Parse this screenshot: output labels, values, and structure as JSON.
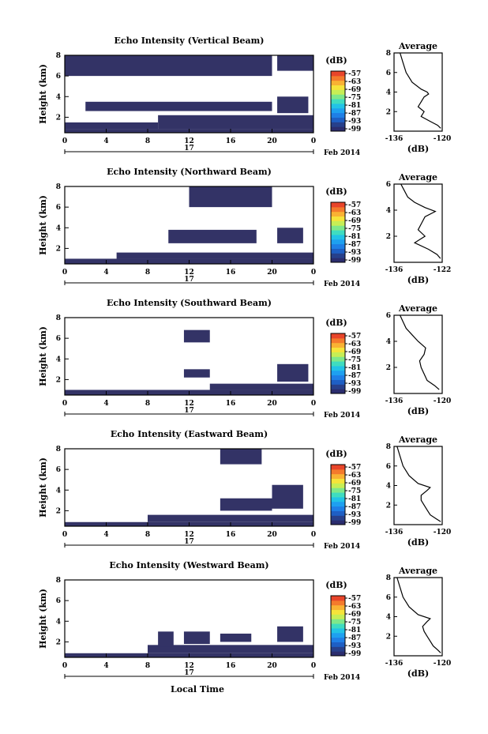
{
  "figure": {
    "xlabel": "Local Time",
    "date_label": "17",
    "month_label": "Feb 2014"
  },
  "colorbar": {
    "unit": "(dB)",
    "ticks": [
      "-57",
      "-63",
      "-69",
      "-75",
      "-81",
      "-87",
      "-93",
      "-99"
    ],
    "colors": [
      "#2b2d6e",
      "#27408b",
      "#1e5fc4",
      "#1f7fe6",
      "#1ea0f0",
      "#22c3e6",
      "#3fdcc0",
      "#7fe88a",
      "#c7ee55",
      "#f6e43a",
      "#f9b233",
      "#f47a2c",
      "#e8452a"
    ]
  },
  "chart_data": [
    {
      "type": "heatmap",
      "title": "Echo Intensity (Vertical Beam)",
      "ylabel": "Height (km)",
      "xlim": [
        0,
        24
      ],
      "ylim": [
        0.5,
        8
      ],
      "xticks": [
        "0",
        "4",
        "8",
        "12",
        "16",
        "20",
        "0"
      ],
      "yticks": [
        "2",
        "4",
        "6",
        "8"
      ],
      "fill_color": "#333366",
      "cells": [
        {
          "x": [
            0,
            24
          ],
          "y": [
            0.5,
            0.85
          ]
        },
        {
          "x": [
            0,
            9
          ],
          "y": [
            0.85,
            1.5
          ]
        },
        {
          "x": [
            9,
            24
          ],
          "y": [
            0.85,
            2.2
          ]
        },
        {
          "x": [
            2,
            20
          ],
          "y": [
            2.6,
            3.5
          ]
        },
        {
          "x": [
            20.5,
            23.5
          ],
          "y": [
            2.4,
            4.0
          ]
        },
        {
          "x": [
            0,
            20
          ],
          "y": [
            6.0,
            8.0
          ]
        },
        {
          "x": [
            20.5,
            24
          ],
          "y": [
            6.5,
            8.0
          ]
        }
      ],
      "average": {
        "title": "Average",
        "xlabel": "(dB)",
        "xlim": [
          -136,
          -120
        ],
        "xticks": [
          "-136",
          "-120"
        ],
        "ylim": [
          0,
          8
        ],
        "yticks": [
          "2",
          "4",
          "6",
          "8"
        ],
        "height": [
          0.3,
          0.6,
          1.0,
          1.5,
          2.0,
          2.5,
          3.0,
          3.5,
          3.8,
          4.0,
          4.3,
          5.0,
          6.0,
          7.0,
          8.0
        ],
        "value": [
          -120.5,
          -121.5,
          -124,
          -127,
          -126,
          -128,
          -127,
          -126,
          -124.5,
          -125,
          -127,
          -130,
          -132,
          -133,
          -134
        ]
      }
    },
    {
      "type": "heatmap",
      "title": "Echo Intensity (Northward Beam)",
      "ylabel": "Height (km)",
      "xlim": [
        0,
        24
      ],
      "ylim": [
        0.5,
        8
      ],
      "xticks": [
        "0",
        "4",
        "8",
        "12",
        "16",
        "20",
        "0"
      ],
      "yticks": [
        "2",
        "4",
        "6",
        "8"
      ],
      "fill_color": "#333366",
      "cells": [
        {
          "x": [
            0,
            24
          ],
          "y": [
            0.5,
            1.0
          ]
        },
        {
          "x": [
            5,
            24
          ],
          "y": [
            1.0,
            1.6
          ]
        },
        {
          "x": [
            10,
            18.5
          ],
          "y": [
            2.5,
            3.8
          ]
        },
        {
          "x": [
            20.5,
            23
          ],
          "y": [
            2.5,
            4.0
          ]
        },
        {
          "x": [
            12,
            20
          ],
          "y": [
            6.0,
            8.0
          ]
        }
      ],
      "average": {
        "title": "Average",
        "xlabel": "(dB)",
        "xlim": [
          -136,
          -122
        ],
        "xticks": [
          "-136",
          "-122"
        ],
        "ylim": [
          0,
          6
        ],
        "yticks": [
          "2",
          "4",
          "6"
        ],
        "height": [
          0.3,
          0.6,
          1.0,
          1.5,
          2.0,
          2.5,
          3.0,
          3.5,
          3.9,
          4.2,
          4.6,
          5.0,
          5.5,
          6.0
        ],
        "value": [
          -122.5,
          -123.5,
          -126,
          -130,
          -127,
          -129,
          -128,
          -127,
          -124,
          -127,
          -130,
          -132,
          -133,
          -134
        ]
      }
    },
    {
      "type": "heatmap",
      "title": "Echo Intensity (Southward Beam)",
      "ylabel": "Height (km)",
      "xlim": [
        0,
        24
      ],
      "ylim": [
        0.5,
        8
      ],
      "xticks": [
        "0",
        "4",
        "8",
        "12",
        "16",
        "20",
        "0"
      ],
      "yticks": [
        "2",
        "4",
        "6",
        "8"
      ],
      "fill_color": "#333366",
      "cells": [
        {
          "x": [
            0,
            24
          ],
          "y": [
            0.5,
            1.0
          ]
        },
        {
          "x": [
            14,
            24
          ],
          "y": [
            1.0,
            1.6
          ]
        },
        {
          "x": [
            11.5,
            14
          ],
          "y": [
            2.2,
            3.0
          ]
        },
        {
          "x": [
            20.5,
            23.5
          ],
          "y": [
            1.8,
            3.5
          ]
        },
        {
          "x": [
            11.5,
            14
          ],
          "y": [
            5.6,
            6.8
          ]
        }
      ],
      "average": {
        "title": "Average",
        "xlabel": "(dB)",
        "xlim": [
          -136,
          -120
        ],
        "xticks": [
          "-136",
          "-120"
        ],
        "ylim": [
          0,
          6
        ],
        "yticks": [
          "2",
          "4",
          "6"
        ],
        "height": [
          0.3,
          0.6,
          1.0,
          1.5,
          2.0,
          2.5,
          3.0,
          3.5,
          4.0,
          4.5,
          5.0,
          5.5,
          6.0
        ],
        "value": [
          -121,
          -122.5,
          -125,
          -126,
          -127,
          -127.5,
          -126,
          -125.5,
          -128,
          -130,
          -132,
          -133,
          -134
        ]
      }
    },
    {
      "type": "heatmap",
      "title": "Echo Intensity (Eastward Beam)",
      "ylabel": "Height (km)",
      "xlim": [
        0,
        24
      ],
      "ylim": [
        0.5,
        8
      ],
      "xticks": [
        "0",
        "4",
        "8",
        "12",
        "16",
        "20",
        "0"
      ],
      "yticks": [
        "2",
        "4",
        "6",
        "8"
      ],
      "fill_color": "#333366",
      "cells": [
        {
          "x": [
            0,
            24
          ],
          "y": [
            0.5,
            0.9
          ]
        },
        {
          "x": [
            8,
            24
          ],
          "y": [
            0.9,
            1.6
          ]
        },
        {
          "x": [
            15,
            20
          ],
          "y": [
            2.0,
            3.2
          ]
        },
        {
          "x": [
            20,
            23
          ],
          "y": [
            2.2,
            4.5
          ]
        },
        {
          "x": [
            15,
            19
          ],
          "y": [
            6.5,
            8.0
          ]
        }
      ],
      "average": {
        "title": "Average",
        "xlabel": "(dB)",
        "xlim": [
          -136,
          -120
        ],
        "xticks": [
          "-136",
          "-120"
        ],
        "ylim": [
          0,
          8
        ],
        "yticks": [
          "2",
          "4",
          "6",
          "8"
        ],
        "height": [
          0.3,
          0.6,
          1.0,
          1.5,
          2.0,
          2.5,
          3.0,
          3.5,
          3.8,
          4.2,
          5.0,
          6.0,
          7.0,
          8.0
        ],
        "value": [
          -120.5,
          -122,
          -124,
          -125,
          -126,
          -127,
          -127,
          -125,
          -124,
          -128,
          -131,
          -133,
          -134,
          -135
        ]
      }
    },
    {
      "type": "heatmap",
      "title": "Echo Intensity (Westward Beam)",
      "ylabel": "Height (km)",
      "xlim": [
        0,
        24
      ],
      "ylim": [
        0.5,
        8
      ],
      "xticks": [
        "0",
        "4",
        "8",
        "12",
        "16",
        "20",
        "0"
      ],
      "yticks": [
        "2",
        "4",
        "6",
        "8"
      ],
      "fill_color": "#333366",
      "cells": [
        {
          "x": [
            0,
            24
          ],
          "y": [
            0.5,
            0.9
          ]
        },
        {
          "x": [
            8,
            24
          ],
          "y": [
            0.9,
            1.7
          ]
        },
        {
          "x": [
            9,
            10.5
          ],
          "y": [
            1.5,
            3.0
          ]
        },
        {
          "x": [
            11.5,
            14
          ],
          "y": [
            1.8,
            3.0
          ]
        },
        {
          "x": [
            15,
            18
          ],
          "y": [
            2.0,
            2.8
          ]
        },
        {
          "x": [
            20.5,
            23
          ],
          "y": [
            2.0,
            3.5
          ]
        }
      ],
      "average": {
        "title": "Average",
        "xlabel": "(dB)",
        "xlim": [
          -136,
          -120
        ],
        "xticks": [
          "-136",
          "-120"
        ],
        "ylim": [
          0,
          8
        ],
        "yticks": [
          "2",
          "4",
          "6",
          "8"
        ],
        "height": [
          0.3,
          0.6,
          1.0,
          1.5,
          2.0,
          2.5,
          3.0,
          3.5,
          3.8,
          4.2,
          5.0,
          6.0,
          7.0,
          8.0
        ],
        "value": [
          -120.5,
          -121.5,
          -123,
          -124,
          -125,
          -126,
          -126.5,
          -125,
          -124,
          -128,
          -131,
          -133,
          -134,
          -135
        ]
      }
    }
  ]
}
